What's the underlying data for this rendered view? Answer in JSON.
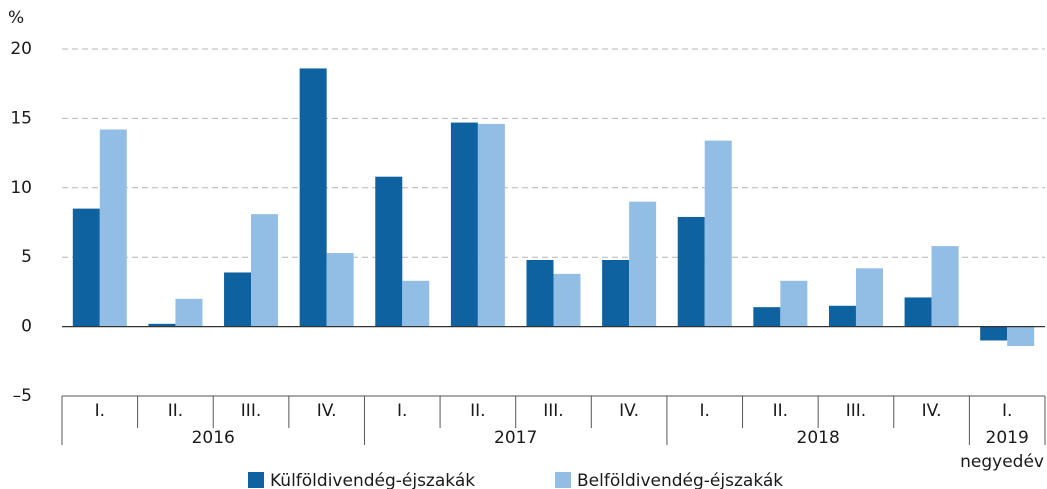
{
  "chart_data": {
    "type": "bar",
    "y_label": "%",
    "x_label": "negyedév",
    "groups": [
      {
        "label": "2016",
        "categories": [
          "I.",
          "II.",
          "III.",
          "IV."
        ]
      },
      {
        "label": "2017",
        "categories": [
          "I.",
          "II.",
          "III.",
          "IV."
        ]
      },
      {
        "label": "2018",
        "categories": [
          "I.",
          "II.",
          "III.",
          "IV."
        ]
      },
      {
        "label": "2019",
        "categories": [
          "I."
        ]
      }
    ],
    "series": [
      {
        "name": "Külföldivendég-éjszakák",
        "color": "#0e62a0",
        "values": [
          8.5,
          0.2,
          3.9,
          18.6,
          10.8,
          14.7,
          4.8,
          4.8,
          7.9,
          1.4,
          1.5,
          2.1,
          -1.0
        ]
      },
      {
        "name": "Belföldivendég-éjszakák",
        "color": "#92bde5",
        "values": [
          14.2,
          2.0,
          8.1,
          5.3,
          3.3,
          14.6,
          3.8,
          9.0,
          13.4,
          3.3,
          4.2,
          5.8,
          -1.4
        ]
      }
    ],
    "ylim": [
      -5,
      20
    ],
    "yticks": [
      {
        "value": -5,
        "label": "–5"
      },
      0,
      5,
      10,
      15,
      20
    ],
    "grid": true,
    "legend": "bottom"
  }
}
